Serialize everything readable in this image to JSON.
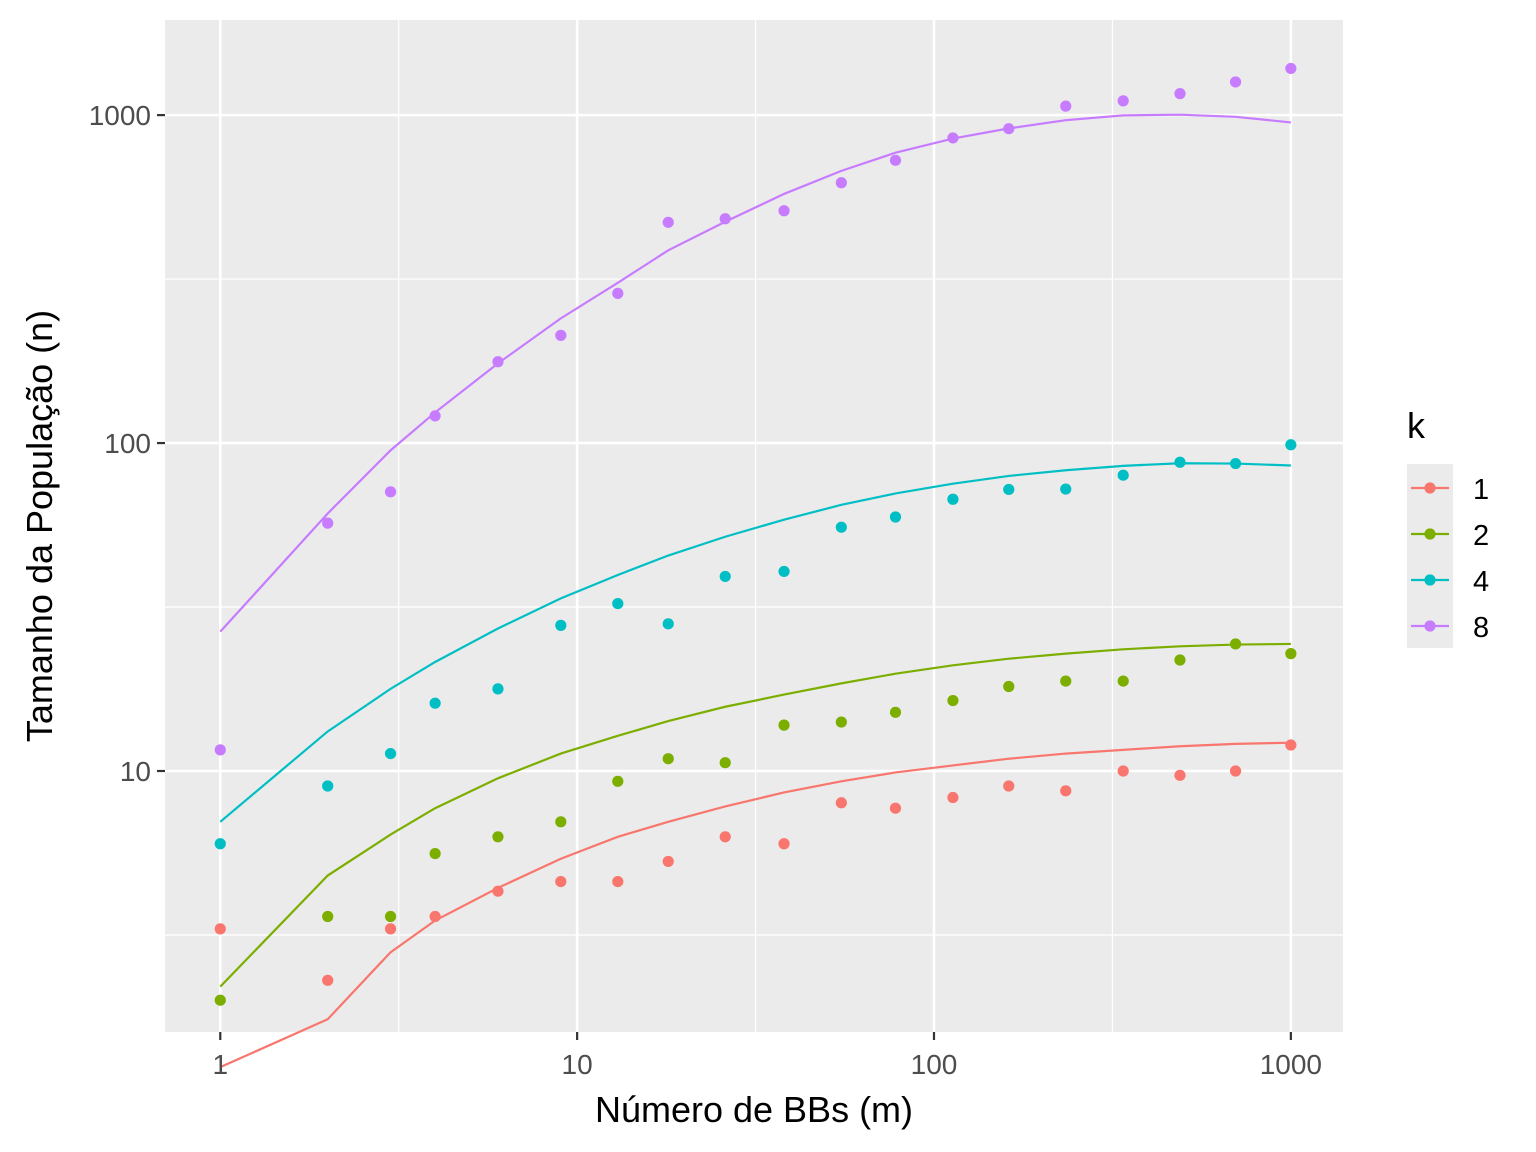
{
  "chart_data": {
    "type": "scatter",
    "title": "",
    "xlabel": "Número de BBs (m)",
    "ylabel": "Tamanho da População (n)",
    "xscale": "log10",
    "yscale": "log10",
    "xlim": [
      0.7,
      1400
    ],
    "ylim": [
      1.6,
      1950
    ],
    "xticks": [
      1,
      10,
      100,
      1000
    ],
    "xtick_labels": [
      "1",
      "10",
      "100",
      "1000"
    ],
    "yticks": [
      10,
      100,
      1000
    ],
    "ytick_labels": [
      "10",
      "100",
      "1000"
    ],
    "grid": true,
    "legend": {
      "title": "k",
      "position": "right"
    },
    "series": [
      {
        "name": "1",
        "color": "#F8766D",
        "points": {
          "x": [
            1,
            2,
            3,
            4,
            6,
            9,
            13,
            18,
            26,
            38,
            55,
            78,
            113,
            162,
            234,
            339,
            489,
            700,
            1000
          ],
          "y": [
            3.3,
            2.3,
            3.3,
            3.6,
            4.3,
            4.6,
            4.6,
            5.3,
            6.3,
            6.0,
            8.0,
            7.7,
            8.3,
            9.0,
            8.7,
            10.0,
            9.7,
            10.0,
            12.0
          ]
        },
        "line": {
          "x": [
            1,
            2,
            3,
            4,
            6,
            9,
            13,
            18,
            26,
            38,
            55,
            78,
            113,
            162,
            234,
            339,
            489,
            700,
            1000
          ],
          "y": [
            1.25,
            1.75,
            2.8,
            3.5,
            4.4,
            5.4,
            6.3,
            7.0,
            7.8,
            8.6,
            9.3,
            9.9,
            10.4,
            10.9,
            11.3,
            11.6,
            11.9,
            12.1,
            12.2
          ]
        }
      },
      {
        "name": "2",
        "color": "#7CAE00",
        "points": {
          "x": [
            1,
            2,
            3,
            4,
            6,
            9,
            13,
            18,
            26,
            38,
            55,
            78,
            113,
            162,
            234,
            339,
            489,
            700,
            1000
          ],
          "y": [
            2.0,
            3.6,
            3.6,
            5.6,
            6.3,
            7.0,
            9.3,
            10.9,
            10.6,
            13.8,
            14.1,
            15.1,
            16.4,
            18.1,
            18.8,
            18.8,
            21.8,
            24.4,
            22.8
          ]
        },
        "line": {
          "x": [
            1,
            2,
            3,
            4,
            6,
            9,
            13,
            18,
            26,
            38,
            55,
            78,
            113,
            162,
            234,
            339,
            489,
            700,
            1000
          ],
          "y": [
            2.2,
            4.8,
            6.4,
            7.7,
            9.5,
            11.3,
            12.8,
            14.2,
            15.7,
            17.1,
            18.5,
            19.8,
            21.0,
            22.0,
            22.8,
            23.5,
            24.0,
            24.3,
            24.4
          ]
        }
      },
      {
        "name": "4",
        "color": "#00BFC4",
        "points": {
          "x": [
            1,
            2,
            3,
            4,
            6,
            9,
            13,
            18,
            26,
            38,
            55,
            78,
            113,
            162,
            234,
            339,
            489,
            700,
            1000
          ],
          "y": [
            6.0,
            9.0,
            11.3,
            16.1,
            17.8,
            27.8,
            32.4,
            28.1,
            39.2,
            40.6,
            55.4,
            59.5,
            67.4,
            72.2,
            72.4,
            79.8,
            87.4,
            86.6,
            98.8
          ]
        },
        "line": {
          "x": [
            1,
            2,
            3,
            4,
            6,
            9,
            13,
            18,
            26,
            38,
            55,
            78,
            113,
            162,
            234,
            339,
            489,
            700,
            1000
          ],
          "y": [
            7.0,
            13.2,
            17.8,
            21.5,
            27.2,
            33.6,
            39.6,
            45.4,
            51.8,
            58.4,
            64.8,
            70.2,
            75.2,
            79.4,
            82.6,
            85.2,
            86.8,
            86.6,
            85.4
          ]
        }
      },
      {
        "name": "8",
        "color": "#C77CFF",
        "points": {
          "x": [
            1,
            2,
            3,
            4,
            6,
            9,
            13,
            18,
            26,
            38,
            55,
            78,
            113,
            162,
            234,
            339,
            489,
            700,
            1000
          ],
          "y": [
            11.6,
            57,
            71,
            121,
            177,
            213,
            286,
            471,
            483,
            511,
            622,
            728,
            852,
            909,
            1065,
            1105,
            1163,
            1262,
            1388
          ]
        },
        "line": {
          "x": [
            1,
            2,
            3,
            4,
            6,
            9,
            13,
            18,
            26,
            38,
            55,
            78,
            113,
            162,
            234,
            339,
            489,
            700,
            1000
          ],
          "y": [
            26.6,
            61,
            95,
            124,
            175,
            240,
            308,
            387,
            473,
            575,
            676,
            768,
            848,
            911,
            965,
            998,
            1003,
            988,
            950
          ]
        }
      }
    ]
  }
}
